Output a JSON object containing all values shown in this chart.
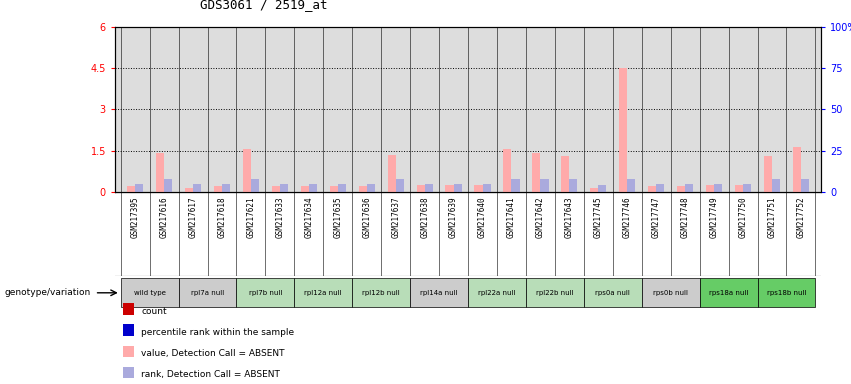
{
  "title": "GDS3061 / 2519_at",
  "samples": [
    "GSM217395",
    "GSM217616",
    "GSM217617",
    "GSM217618",
    "GSM217621",
    "GSM217633",
    "GSM217634",
    "GSM217635",
    "GSM217636",
    "GSM217637",
    "GSM217638",
    "GSM217639",
    "GSM217640",
    "GSM217641",
    "GSM217642",
    "GSM217643",
    "GSM217745",
    "GSM217746",
    "GSM217747",
    "GSM217748",
    "GSM217749",
    "GSM217750",
    "GSM217751",
    "GSM217752"
  ],
  "genotype_groups": [
    {
      "label": "wild type",
      "color": "#cccccc",
      "indices": [
        0,
        1
      ]
    },
    {
      "label": "rpl7a null",
      "color": "#cccccc",
      "indices": [
        2,
        3
      ]
    },
    {
      "label": "rpl7b null",
      "color": "#b8ddb8",
      "indices": [
        4,
        5
      ]
    },
    {
      "label": "rpl12a null",
      "color": "#b8ddb8",
      "indices": [
        6,
        7
      ]
    },
    {
      "label": "rpl12b null",
      "color": "#b8ddb8",
      "indices": [
        8,
        9
      ]
    },
    {
      "label": "rpl14a null",
      "color": "#cccccc",
      "indices": [
        10,
        11
      ]
    },
    {
      "label": "rpl22a null",
      "color": "#b8ddb8",
      "indices": [
        12,
        13
      ]
    },
    {
      "label": "rpl22b null",
      "color": "#b8ddb8",
      "indices": [
        14,
        15
      ]
    },
    {
      "label": "rps0a null",
      "color": "#b8ddb8",
      "indices": [
        16,
        17
      ]
    },
    {
      "label": "rps0b null",
      "color": "#cccccc",
      "indices": [
        18,
        19
      ]
    },
    {
      "label": "rps18a null",
      "color": "#66cc66",
      "indices": [
        20,
        21
      ]
    },
    {
      "label": "rps18b null",
      "color": "#66cc66",
      "indices": [
        22,
        23
      ]
    }
  ],
  "value_absent": [
    0.2,
    1.4,
    0.15,
    0.2,
    1.55,
    0.2,
    0.2,
    0.2,
    0.2,
    1.35,
    0.25,
    0.25,
    0.25,
    1.55,
    1.4,
    1.3,
    0.15,
    4.5,
    0.2,
    0.2,
    0.25,
    0.25,
    1.3,
    1.65
  ],
  "rank_absent_pct": [
    5,
    8,
    5,
    5,
    8,
    5,
    5,
    5,
    5,
    8,
    5,
    5,
    5,
    8,
    8,
    8,
    4,
    8,
    5,
    5,
    5,
    5,
    8,
    8
  ],
  "ylim_left": [
    0,
    6
  ],
  "ylim_right": [
    0,
    100
  ],
  "yticks_left": [
    0,
    1.5,
    3.0,
    4.5,
    6.0
  ],
  "ytick_labels_left": [
    "0",
    "1.5",
    "3",
    "4.5",
    "6"
  ],
  "yticks_right": [
    0,
    25,
    50,
    75,
    100
  ],
  "ytick_labels_right": [
    "0",
    "25",
    "50",
    "75",
    "100%"
  ],
  "bar_color_absent_value": "#ffaaaa",
  "bar_color_absent_rank": "#aaaadd",
  "bar_color_count": "#cc0000",
  "bar_color_percentile": "#0000cc",
  "bg_color": "#ffffff",
  "plot_bg_color": "#dddddd",
  "label_band_color": "#cccccc",
  "legend": [
    {
      "color": "#cc0000",
      "label": "count"
    },
    {
      "color": "#0000cc",
      "label": "percentile rank within the sample"
    },
    {
      "color": "#ffaaaa",
      "label": "value, Detection Call = ABSENT"
    },
    {
      "color": "#aaaadd",
      "label": "rank, Detection Call = ABSENT"
    }
  ]
}
